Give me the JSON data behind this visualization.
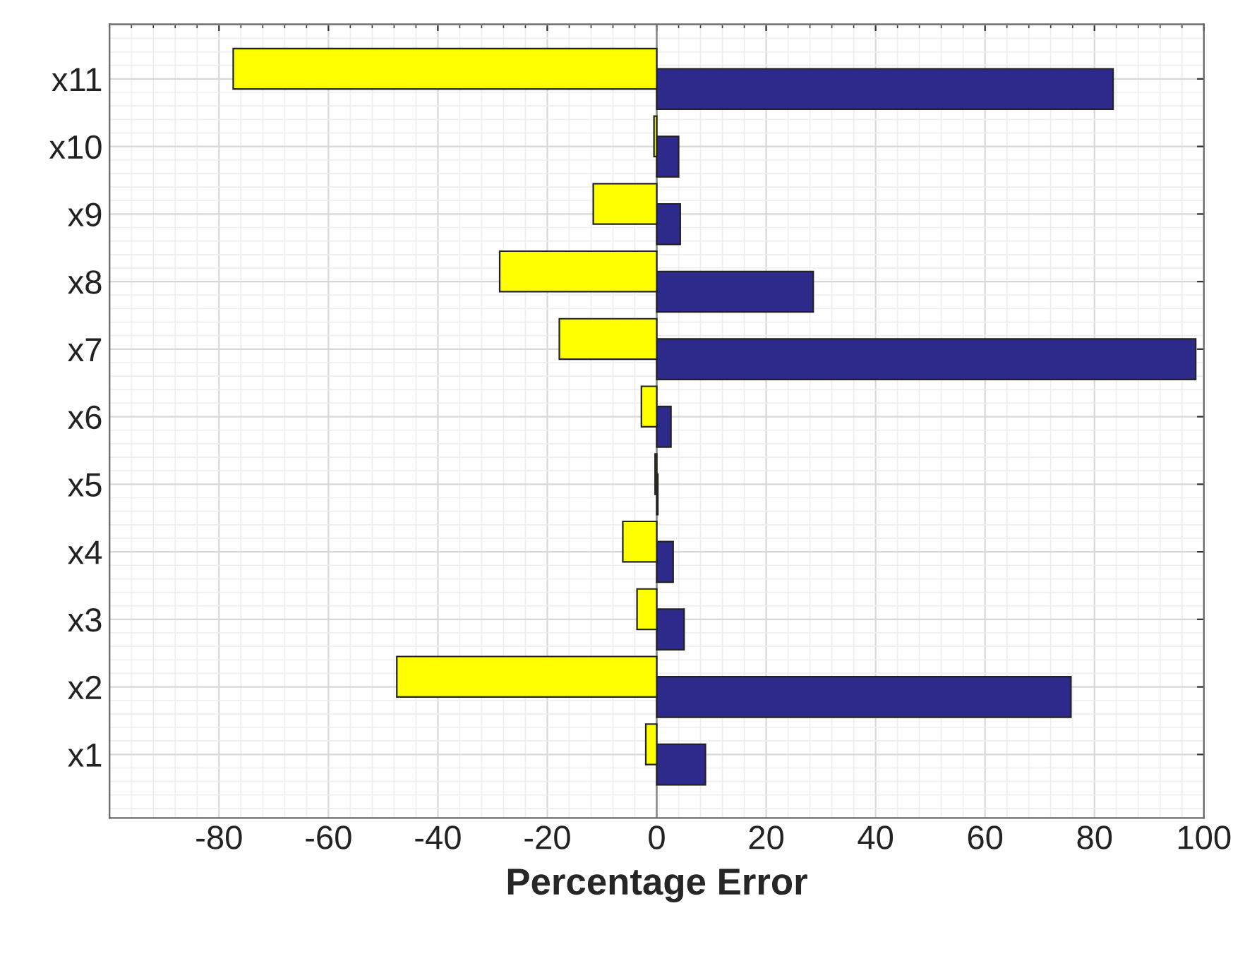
{
  "chart_data": {
    "type": "bar",
    "orientation": "horizontal",
    "xlabel": "Percentage Error",
    "categories": [
      "x11",
      "x10",
      "x9",
      "x8",
      "x7",
      "x6",
      "x5",
      "x4",
      "x3",
      "x2",
      "x1"
    ],
    "series": [
      {
        "color": "#ffff00",
        "values": [
          -77.4,
          -0.5,
          -11.6,
          -28.7,
          -17.8,
          -2.8,
          -0.3,
          -6.2,
          -3.6,
          -47.5,
          -2.0
        ]
      },
      {
        "color": "#2e2a8c",
        "values": [
          83.4,
          4.0,
          4.3,
          28.6,
          98.5,
          2.6,
          0.2,
          3.0,
          5.0,
          75.7,
          8.9
        ]
      }
    ],
    "xlim": [
      -100,
      100
    ],
    "xticks": [
      -80,
      -60,
      -40,
      -20,
      0,
      20,
      40,
      60,
      80,
      100
    ],
    "grid": true
  }
}
